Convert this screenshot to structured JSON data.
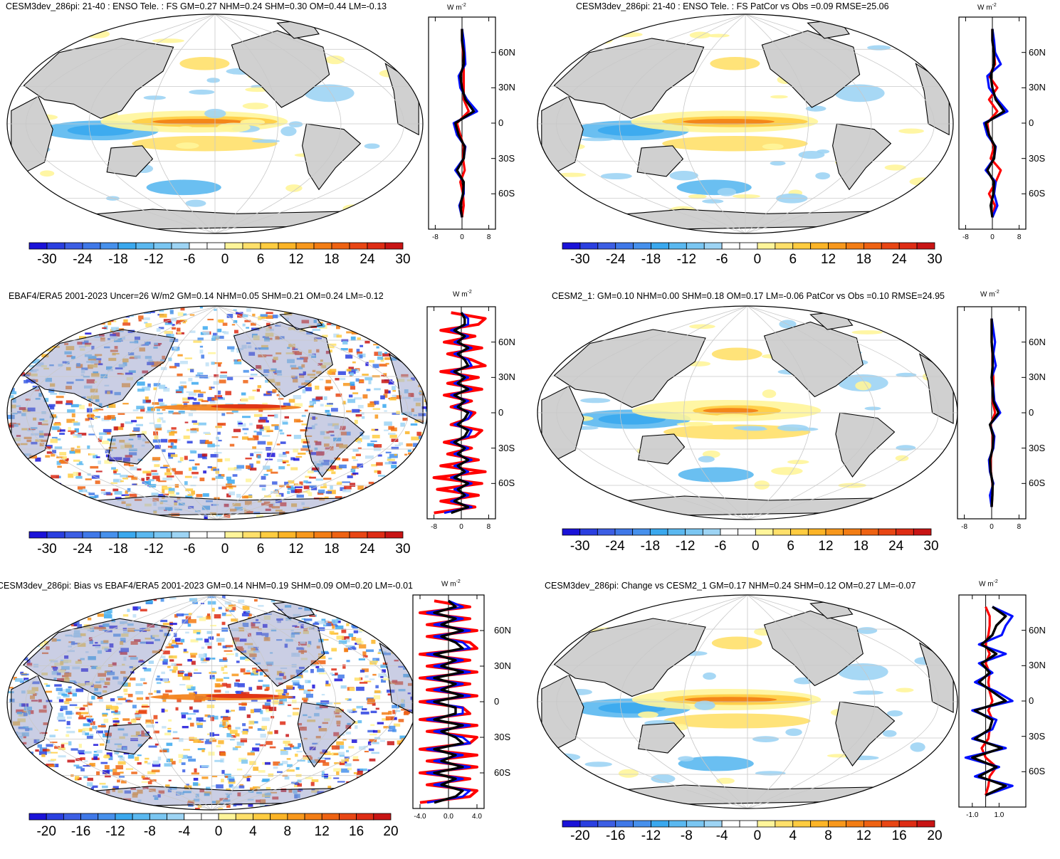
{
  "chart_data": [
    {
      "type": "map",
      "panel_id": "p1",
      "title": "CESM3dev_286pi: 21-40 : ENSO Tele. : FS GM=0.27 NHM=0.24 SHM=0.30 OM=0.44 LM=-0.13",
      "units": "W m",
      "units_sup": "-2",
      "lat_ticks": [
        "60N",
        "30N",
        "0",
        "30S",
        "60S"
      ],
      "profile_xticks": [
        "-8",
        "0",
        "8"
      ],
      "profile_xlim": [
        -10,
        10
      ],
      "colorbar_levels": [
        -32,
        -28,
        -24,
        -20,
        -18,
        -16,
        -14,
        -12,
        -10,
        -8,
        -6,
        -4,
        -2,
        2,
        4,
        6,
        8,
        10,
        12,
        14,
        16,
        18,
        20,
        24,
        28,
        32
      ],
      "colorbar_labels": [
        "-30",
        "-24",
        "-18",
        "-12",
        "-6",
        "0",
        "6",
        "12",
        "18",
        "24",
        "30"
      ],
      "colors": [
        "#1a12d8",
        "#2a3fe0",
        "#3c5ee4",
        "#3f78e8",
        "#4690ec",
        "#3aa8ee",
        "#5ab8f0",
        "#7ac6f2",
        "#9dd4f4",
        "#ffffff",
        "#ffffff",
        "#fff59a",
        "#ffe06a",
        "#ffcc40",
        "#fcb426",
        "#f8981c",
        "#f37d14",
        "#ee6212",
        "#e84614",
        "#de2c14",
        "#c81414"
      ],
      "zonal_mean": {
        "lat": [
          -80,
          -70,
          -60,
          -50,
          -40,
          -30,
          -20,
          -10,
          0,
          10,
          20,
          30,
          40,
          50,
          60,
          70,
          80
        ],
        "black": [
          0,
          -0.5,
          0.3,
          0.5,
          -1.5,
          0.5,
          0.8,
          -1,
          -2,
          3.5,
          1,
          0,
          -0.5,
          0.5,
          0.5,
          0,
          0
        ],
        "red": [
          0,
          0.5,
          0.3,
          -0.5,
          0.8,
          0.3,
          0.5,
          -0.5,
          -1.5,
          2,
          0.5,
          0.5,
          0.5,
          0.5,
          0.3,
          0,
          0
        ],
        "blue": [
          0,
          -0.8,
          0.5,
          0.5,
          -2,
          0.5,
          1,
          -1.5,
          -2.5,
          4.5,
          1.5,
          -0.5,
          -1,
          1,
          0.8,
          0.5,
          0
        ]
      }
    },
    {
      "type": "map",
      "panel_id": "p2",
      "title": "CESM3dev_286pi: 21-40 : ENSO Tele. : FS PatCor vs Obs =0.09 RMSE=25.06",
      "units": "W m",
      "units_sup": "-2",
      "lat_ticks": [
        "60N",
        "30N",
        "0",
        "30S",
        "60S"
      ],
      "profile_xticks": [
        "-8",
        "0",
        "8"
      ],
      "profile_xlim": [
        -10,
        10
      ],
      "colorbar_labels": [
        "-30",
        "-24",
        "-18",
        "-12",
        "-6",
        "0",
        "6",
        "12",
        "18",
        "24",
        "30"
      ],
      "zonal_mean": {
        "lat": [
          -80,
          -70,
          -60,
          -50,
          -40,
          -30,
          -20,
          -10,
          0,
          10,
          20,
          30,
          40,
          50,
          60,
          70,
          80
        ],
        "black": [
          0,
          -0.5,
          0.3,
          0.5,
          -1.5,
          0.5,
          0.8,
          -1,
          -2,
          3.5,
          1,
          0,
          -0.5,
          0.5,
          0.5,
          0,
          0
        ],
        "red": [
          0,
          0.8,
          -1,
          1,
          2.5,
          -0.5,
          0.5,
          -1,
          -1.5,
          1.5,
          -1,
          1.5,
          -1,
          0.8,
          0.5,
          0,
          0
        ],
        "blue": [
          0,
          1.5,
          0.5,
          1,
          -2,
          0.5,
          1,
          -1.5,
          -2.5,
          4.5,
          1.5,
          -1,
          -1.5,
          2.5,
          0.8,
          0.5,
          0
        ]
      }
    },
    {
      "type": "map",
      "panel_id": "p3",
      "title": "EBAF4/ERA5 2001-2023 Uncer=26 W/m2 GM=0.14 NHM=0.05 SHM=0.21 OM=0.24 LM=-0.12",
      "units": "W m",
      "units_sup": "-2",
      "lat_ticks": [
        "60N",
        "30N",
        "0",
        "30S",
        "60S"
      ],
      "profile_xticks": [
        "-8",
        "0",
        "8"
      ],
      "profile_xlim": [
        -10,
        10
      ],
      "colorbar_labels": [
        "-30",
        "-24",
        "-18",
        "-12",
        "-6",
        "0",
        "6",
        "12",
        "18",
        "24",
        "30"
      ],
      "zonal_mean": {
        "lat": [
          -85,
          -80,
          -75,
          -70,
          -65,
          -60,
          -55,
          -50,
          -45,
          -40,
          -35,
          -30,
          -25,
          -20,
          -15,
          -10,
          -5,
          0,
          5,
          10,
          15,
          20,
          25,
          30,
          35,
          40,
          45,
          50,
          55,
          60,
          65,
          70,
          75,
          80,
          85
        ],
        "black": [
          -3,
          2,
          -2,
          1,
          -1,
          2,
          -2,
          1,
          -1,
          2,
          -1,
          1,
          -2,
          1,
          2,
          -1,
          1,
          2,
          -1,
          1,
          -2,
          2,
          -1,
          1,
          -2,
          2,
          1,
          -1,
          2,
          -1,
          1,
          -2,
          1,
          1,
          0
        ],
        "red": [
          -8,
          4,
          -6,
          5,
          -7,
          6,
          -8,
          7,
          -6,
          5,
          -4,
          3,
          -5,
          4,
          6,
          -3,
          2,
          4,
          -3,
          3,
          -5,
          6,
          -4,
          5,
          -6,
          7,
          3,
          -4,
          6,
          -5,
          4,
          -6,
          5,
          7,
          -3
        ],
        "blue": [
          -5,
          3,
          -3,
          2,
          -2,
          3,
          -3,
          2,
          -2,
          3,
          -2,
          2,
          -3,
          2,
          3,
          -2,
          2,
          3,
          -2,
          2,
          -3,
          3,
          -2,
          2,
          -3,
          3,
          2,
          -2,
          3,
          -2,
          2,
          -3,
          2,
          2,
          0
        ]
      }
    },
    {
      "type": "map",
      "panel_id": "p4",
      "title": "CESM2_1: GM=0.10 NHM=0.00 SHM=0.18 OM=0.17 LM=-0.06 PatCor vs Obs =0.10 RMSE=24.95",
      "units": "W m",
      "units_sup": "-2",
      "lat_ticks": [
        "60N",
        "30N",
        "0",
        "30S",
        "60S"
      ],
      "profile_xticks": [
        "-8",
        "0",
        "8"
      ],
      "profile_xlim": [
        -10,
        10
      ],
      "colorbar_labels": [
        "-30",
        "-24",
        "-18",
        "-12",
        "-6",
        "0",
        "6",
        "12",
        "18",
        "24",
        "30"
      ],
      "zonal_mean": {
        "lat": [
          -80,
          -70,
          -60,
          -50,
          -40,
          -30,
          -20,
          -10,
          0,
          10,
          20,
          30,
          40,
          50,
          60,
          70,
          80
        ],
        "black": [
          0,
          0.2,
          0.3,
          -0.3,
          -0.5,
          0.3,
          0.5,
          -0.5,
          2,
          0.5,
          0.3,
          0,
          0.3,
          0.3,
          0,
          0,
          0
        ],
        "red": [
          0,
          0.2,
          0.2,
          -0.2,
          -0.3,
          0.2,
          0.3,
          -0.3,
          1,
          0.3,
          0.5,
          0.5,
          0.2,
          0.2,
          0,
          0,
          0
        ],
        "blue": [
          0,
          -0.5,
          0.5,
          -0.5,
          -0.8,
          0.5,
          0.8,
          -0.5,
          2.5,
          0.8,
          0.5,
          0,
          1.2,
          0.5,
          1,
          0.5,
          0
        ]
      }
    },
    {
      "type": "map",
      "panel_id": "p5",
      "title": "CESM3dev_286pi: Bias vs EBAF4/ERA5 2001-2023 GM=0.14 NHM=0.19 SHM=0.09 OM=0.20 LM=-0.01",
      "units": "W m",
      "units_sup": "-2",
      "lat_ticks": [
        "60N",
        "30N",
        "0",
        "30S",
        "60S"
      ],
      "profile_xticks": [
        "-4.0",
        "0.0",
        "4.0"
      ],
      "profile_xlim": [
        -5,
        5
      ],
      "colorbar_labels": [
        "-20",
        "-16",
        "-12",
        "-8",
        "-4",
        "0",
        "4",
        "8",
        "12",
        "16",
        "20"
      ],
      "zonal_mean": {
        "lat": [
          -85,
          -80,
          -75,
          -70,
          -65,
          -60,
          -55,
          -50,
          -45,
          -40,
          -35,
          -30,
          -25,
          -20,
          -15,
          -10,
          -5,
          0,
          5,
          10,
          15,
          20,
          25,
          30,
          35,
          40,
          45,
          50,
          55,
          60,
          65,
          70,
          75,
          80,
          85
        ],
        "black": [
          -2,
          1,
          2,
          -1,
          1,
          -2,
          2,
          -1,
          1,
          -2,
          2,
          1,
          -1,
          2,
          -2,
          1,
          1,
          -2,
          2,
          -1,
          1,
          -2,
          2,
          -1,
          1,
          -2,
          2,
          1,
          -1,
          2,
          -1,
          1,
          -2,
          1,
          0
        ],
        "red": [
          -4,
          3,
          4,
          -3,
          3,
          -4,
          4,
          -3,
          4,
          -4,
          3,
          4,
          -3,
          4,
          -4,
          3,
          2,
          -4,
          4,
          -3,
          3,
          -4,
          4,
          -3,
          3,
          -4,
          4,
          3,
          -3,
          4,
          -3,
          3,
          -4,
          3,
          -2
        ],
        "blue": [
          -3,
          2,
          3,
          -2,
          2,
          -3,
          3,
          -2,
          2,
          -3,
          3,
          2,
          -2,
          3,
          -3,
          2,
          2,
          -3,
          3,
          -2,
          2,
          -3,
          3,
          -2,
          2,
          -3,
          3,
          2,
          -2,
          3,
          -2,
          2,
          -3,
          2,
          0
        ]
      }
    },
    {
      "type": "map",
      "panel_id": "p6",
      "title": "CESM3dev_286pi: Change vs CESM2_1 GM=0.17 NHM=0.24 SHM=0.12 OM=0.27 LM=-0.07",
      "units": "W m",
      "units_sup": "-2",
      "lat_ticks": [
        "60N",
        "30N",
        "0",
        "30S",
        "60S"
      ],
      "profile_xticks": [
        "-1.0",
        "1.0"
      ],
      "profile_xlim": [
        -2,
        3
      ],
      "colorbar_labels": [
        "-20",
        "-16",
        "-12",
        "-8",
        "-4",
        "0",
        "4",
        "8",
        "12",
        "16",
        "20"
      ],
      "zonal_mean": {
        "lat": [
          -80,
          -72,
          -64,
          -56,
          -48,
          -40,
          -32,
          -24,
          -16,
          -8,
          0,
          8,
          16,
          24,
          32,
          40,
          48,
          56,
          64,
          72,
          80
        ],
        "black": [
          0,
          1.5,
          -0.5,
          0.8,
          -1,
          1.2,
          -0.8,
          0.3,
          0.5,
          -0.8,
          1.5,
          0.5,
          -0.5,
          0.3,
          -0.3,
          0.8,
          -0.3,
          0.5,
          0.8,
          1.5,
          0.5
        ],
        "red": [
          0,
          0.2,
          0.3,
          0.8,
          0,
          -0.3,
          0.2,
          0.3,
          0.5,
          0.2,
          0.5,
          0.3,
          0.2,
          0.3,
          0,
          0.3,
          0,
          0.2,
          0.3,
          0.3,
          0
        ],
        "blue": [
          0,
          2,
          -0.8,
          1,
          -1.5,
          1.5,
          -1,
          0.5,
          0.8,
          -1,
          2,
          0.8,
          -0.8,
          0.5,
          -0.5,
          1.5,
          -0.5,
          1.2,
          1.5,
          2,
          0.5
        ]
      }
    }
  ]
}
